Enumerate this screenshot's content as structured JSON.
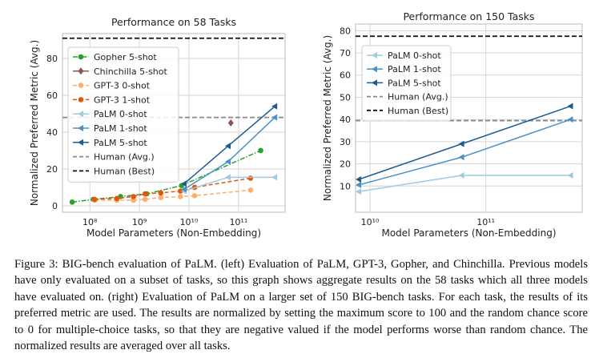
{
  "chart_data": [
    {
      "type": "line",
      "title": "Performance on 58 Tasks",
      "xlabel": "Model Parameters (Non-Embedding)",
      "ylabel": "Normalized Preferred Metric (Avg.)",
      "xscale": "log",
      "xlim": [
        28000000.0,
        870000000000.0
      ],
      "ylim": [
        -3.5,
        93.5
      ],
      "xticks": [
        {
          "value": 100000000.0,
          "label": "10⁸"
        },
        {
          "value": 1000000000.0,
          "label": "10⁹"
        },
        {
          "value": 10000000000.0,
          "label": "10¹⁰"
        },
        {
          "value": 100000000000.0,
          "label": "10¹¹"
        }
      ],
      "yticks": [
        {
          "value": 0,
          "label": "0"
        },
        {
          "value": 20,
          "label": "20"
        },
        {
          "value": 40,
          "label": "40"
        },
        {
          "value": 60,
          "label": "60"
        },
        {
          "value": 80,
          "label": "80"
        }
      ],
      "grid": true,
      "legend": "upper-left",
      "series": [
        {
          "name": "Gopher 5-shot",
          "color": "#2ca02c",
          "dash": "dashdot",
          "marker": "circle",
          "x": [
            44000000.0,
            117000000.0,
            417000000.0,
            1400000000.0,
            7100000000.0,
            280000000000.0
          ],
          "y": [
            2,
            3.5,
            5,
            6.5,
            11,
            30
          ]
        },
        {
          "name": "Chinchilla 5-shot",
          "color": "#8c564b",
          "dash": "none",
          "marker": "diamond",
          "x": [
            70000000000.0
          ],
          "y": [
            45
          ]
        },
        {
          "name": "GPT-3 0-shot",
          "color": "#fdae6b",
          "dash": "dashed",
          "marker": "circle",
          "x": [
            125000000.0,
            350000000.0,
            760000000.0,
            1300000000.0,
            2700000000.0,
            6700000000.0,
            13000000000.0,
            175000000000.0
          ],
          "y": [
            3,
            3,
            3,
            3.5,
            4.5,
            5,
            5.5,
            8.5
          ]
        },
        {
          "name": "GPT-3 1-shot",
          "color": "#e6550d",
          "dash": "dashed",
          "marker": "circle",
          "x": [
            125000000.0,
            350000000.0,
            760000000.0,
            1300000000.0,
            2700000000.0,
            6700000000.0,
            13000000000.0,
            175000000000.0
          ],
          "y": [
            3.5,
            4,
            5,
            6.5,
            7,
            8,
            10,
            15
          ]
        },
        {
          "name": "PaLM 0-shot",
          "color": "#9ecae1",
          "dash": "solid",
          "marker": "triangle-left",
          "x": [
            8000000000.0,
            62000000000.0,
            540000000000.0
          ],
          "y": [
            8,
            15.5,
            15.5
          ]
        },
        {
          "name": "PaLM 1-shot",
          "color": "#4a90c8",
          "dash": "solid",
          "marker": "triangle-left",
          "x": [
            8000000000.0,
            62000000000.0,
            540000000000.0
          ],
          "y": [
            9,
            24,
            48
          ]
        },
        {
          "name": "PaLM 5-shot",
          "color": "#1c5a8f",
          "dash": "solid",
          "marker": "triangle-left",
          "x": [
            8000000000.0,
            62000000000.0,
            540000000000.0
          ],
          "y": [
            12,
            32.5,
            54
          ]
        }
      ],
      "hlines": [
        {
          "name": "Human (Avg.)",
          "value": 48,
          "color": "#888888"
        },
        {
          "name": "Human (Best)",
          "value": 91,
          "color": "#111111"
        }
      ]
    },
    {
      "type": "line",
      "title": "Performance on 150 Tasks",
      "xlabel": "Model Parameters (Non-Embedding)",
      "ylabel": "Normalized Preferred Metric (Avg.)",
      "xscale": "log",
      "xlim": [
        7500000000.0,
        680000000000.0
      ],
      "ylim": [
        -1.8,
        83
      ],
      "xticks": [
        {
          "value": 10000000000.0,
          "label": "10¹⁰"
        },
        {
          "value": 100000000000.0,
          "label": "10¹¹"
        }
      ],
      "yticks": [
        {
          "value": 10,
          "label": "10"
        },
        {
          "value": 20,
          "label": "20"
        },
        {
          "value": 30,
          "label": "30"
        },
        {
          "value": 40,
          "label": "40"
        },
        {
          "value": 50,
          "label": "50"
        },
        {
          "value": 60,
          "label": "60"
        },
        {
          "value": 70,
          "label": "70"
        },
        {
          "value": 80,
          "label": "80"
        }
      ],
      "grid": true,
      "legend": "upper-left",
      "series": [
        {
          "name": "PaLM 0-shot",
          "color": "#9ecae1",
          "dash": "solid",
          "marker": "triangle-left",
          "x": [
            8000000000.0,
            62000000000.0,
            540000000000.0
          ],
          "y": [
            7.5,
            14.8,
            14.8
          ]
        },
        {
          "name": "PaLM 1-shot",
          "color": "#4a90c8",
          "dash": "solid",
          "marker": "triangle-left",
          "x": [
            8000000000.0,
            62000000000.0,
            540000000000.0
          ],
          "y": [
            10.5,
            23,
            40
          ]
        },
        {
          "name": "PaLM 5-shot",
          "color": "#1c5a8f",
          "dash": "solid",
          "marker": "triangle-left",
          "x": [
            8000000000.0,
            62000000000.0,
            540000000000.0
          ],
          "y": [
            13,
            29,
            46
          ]
        }
      ],
      "hlines": [
        {
          "name": "Human (Avg.)",
          "value": 39.5,
          "color": "#888888"
        },
        {
          "name": "Human (Best)",
          "value": 77.5,
          "color": "#111111"
        }
      ]
    }
  ],
  "caption": "Figure 3: BIG-bench evaluation of PaLM. (left) Evaluation of PaLM, GPT-3, Gopher, and Chinchilla. Previous models have only evaluated on a subset of tasks, so this graph shows aggregate results on the 58 tasks which all three models have evaluated on. (right) Evaluation of PaLM on a larger set of 150 BIG-bench tasks. For each task, the results of its preferred metric are used. The results are normalized by setting the maximum score to 100 and the random chance score to 0 for multiple-choice tasks, so that they are negative valued if the model performs worse than random chance. The normalized results are averaged over all tasks."
}
